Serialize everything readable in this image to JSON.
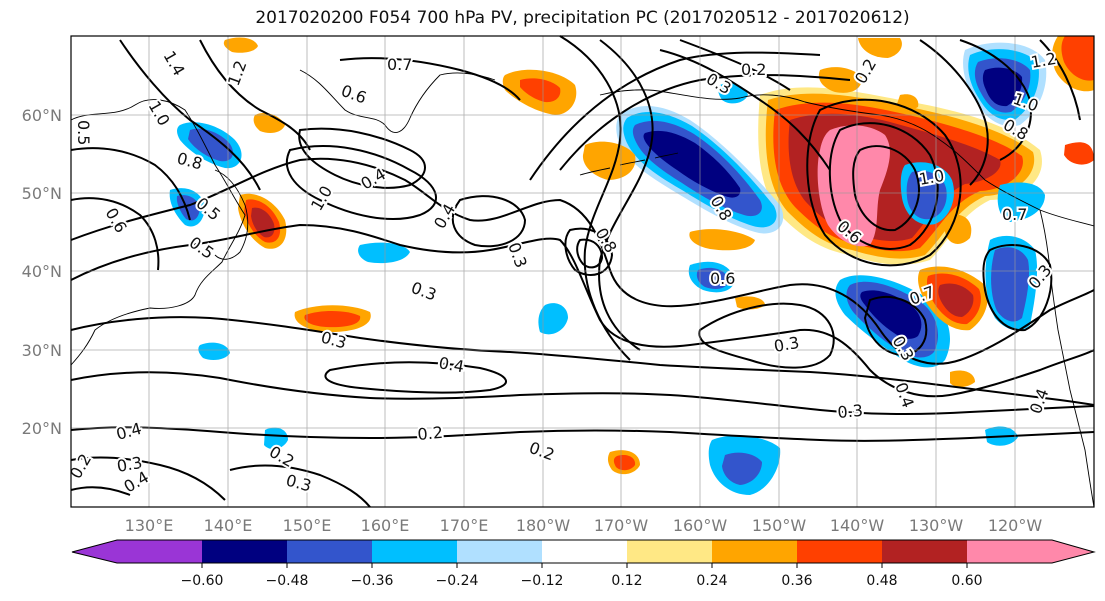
{
  "title": "2017020200 F054 700 hPa PV, precipitation PC (2017020512 - 2017020612)",
  "map": {
    "lat_labels": [
      "60°N",
      "50°N",
      "40°N",
      "30°N",
      "20°N"
    ],
    "lon_labels": [
      "130°E",
      "140°E",
      "150°E",
      "160°E",
      "170°E",
      "180°W",
      "170°W",
      "160°W",
      "150°W",
      "140°W",
      "130°W",
      "120°W"
    ],
    "contour_labels": [
      {
        "text": "0.7"
      },
      {
        "text": "0.2"
      },
      {
        "text": "0.6"
      },
      {
        "text": "1.4"
      },
      {
        "text": "1.2"
      },
      {
        "text": "1.0"
      },
      {
        "text": "0.5"
      },
      {
        "text": "0.8"
      },
      {
        "text": "0.4"
      },
      {
        "text": "0.6"
      },
      {
        "text": "0.5"
      },
      {
        "text": "0.5"
      },
      {
        "text": "1.0"
      },
      {
        "text": "0.4"
      },
      {
        "text": "0.3"
      },
      {
        "text": "0.8"
      },
      {
        "text": "0.3"
      },
      {
        "text": "0.3"
      },
      {
        "text": "0.6"
      },
      {
        "text": "0.4"
      },
      {
        "text": "0.3"
      },
      {
        "text": "0.3"
      },
      {
        "text": "0.6"
      },
      {
        "text": "0.7"
      },
      {
        "text": "0.3"
      },
      {
        "text": "0.4"
      },
      {
        "text": "0.3"
      },
      {
        "text": "0.2"
      },
      {
        "text": "0.2"
      },
      {
        "text": "0.4"
      },
      {
        "text": "0.3"
      },
      {
        "text": "0.2"
      },
      {
        "text": "0.3"
      },
      {
        "text": "0.4"
      },
      {
        "text": "0.4"
      },
      {
        "text": "0.8"
      },
      {
        "text": "1.0"
      },
      {
        "text": "1.2"
      },
      {
        "text": "0.8"
      },
      {
        "text": "1.0"
      },
      {
        "text": "0.7"
      },
      {
        "text": "0.2"
      },
      {
        "text": "0.3"
      },
      {
        "text": "0.2"
      }
    ]
  },
  "colorbar": {
    "colors": [
      "#9a35d6",
      "#000080",
      "#3355cc",
      "#00bfff",
      "#b0e0ff",
      "#ffffff",
      "#ffe885",
      "#ffa500",
      "#ff4000",
      "#b22222",
      "#ff88aa"
    ],
    "labels": [
      "−0.60",
      "−0.48",
      "−0.36",
      "−0.24",
      "−0.12",
      "0.12",
      "0.24",
      "0.36",
      "0.48",
      "0.60"
    ]
  },
  "colors": {
    "positive_light": "#ffe885",
    "positive_mid": "#ffa500",
    "positive_strong": "#ff4000",
    "positive_dark": "#b22222",
    "positive_extreme": "#ff88aa",
    "negative_light": "#b0e0ff",
    "negative_mid": "#00bfff",
    "negative_strong": "#3355cc",
    "negative_dark": "#000080"
  }
}
